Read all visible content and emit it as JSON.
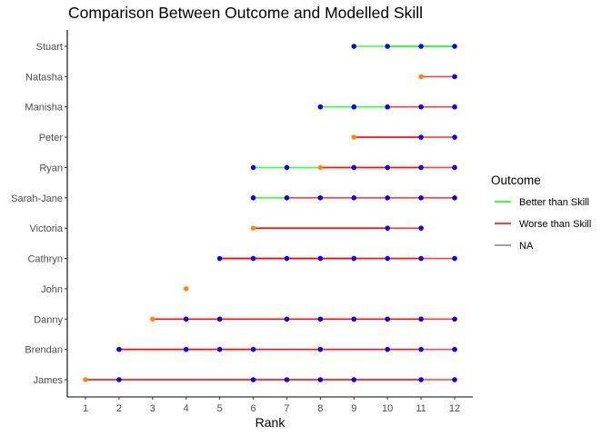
{
  "chart_data": {
    "type": "line",
    "title": "Comparison Between Outcome and Modelled Skill",
    "xlabel": "Rank",
    "ylabel": "",
    "xlim": [
      1,
      12
    ],
    "x_ticks": [
      "1",
      "2",
      "3",
      "4",
      "5",
      "6",
      "7",
      "8",
      "9",
      "10",
      "11",
      "12"
    ],
    "grid": false,
    "legend": {
      "title": "Outcome",
      "placement": "right",
      "entries": [
        {
          "label": "Better than Skill",
          "color": "#00ff00"
        },
        {
          "label": "Worse than Skill",
          "color": "#ff0000"
        },
        {
          "label": "NA",
          "color": "#808080"
        }
      ]
    },
    "point_colors": {
      "outcome": "#ff8c00",
      "skill": "#0000ff"
    },
    "categories": [
      "James",
      "Brendan",
      "Danny",
      "John",
      "Cathryn",
      "Victoria",
      "Sarah-Jane",
      "Ryan",
      "Peter",
      "Manisha",
      "Natasha",
      "Stuart"
    ],
    "players": [
      {
        "name": "Stuart",
        "outcome_rank": null,
        "skill_ranks": [
          9,
          10,
          11,
          12
        ],
        "segments": [
          {
            "from": 9,
            "to": 12,
            "outcome": "Better than Skill"
          },
          {
            "from": 10,
            "to": 12,
            "outcome": "Better than Skill"
          }
        ]
      },
      {
        "name": "Natasha",
        "outcome_rank": 11,
        "skill_ranks": [
          12
        ],
        "segments": [
          {
            "from": 11,
            "to": 12,
            "outcome": "Worse than Skill"
          }
        ]
      },
      {
        "name": "Manisha",
        "outcome_rank": null,
        "skill_ranks": [
          8,
          9,
          10,
          11,
          12
        ],
        "segments": [
          {
            "from": 8,
            "to": 10,
            "outcome": "Better than Skill"
          },
          {
            "from": 10,
            "to": 12,
            "outcome": "Worse than Skill"
          }
        ]
      },
      {
        "name": "Peter",
        "outcome_rank": 9,
        "skill_ranks": [
          11,
          12
        ],
        "segments": [
          {
            "from": 9,
            "to": 12,
            "outcome": "Worse than Skill"
          },
          {
            "from": 9,
            "to": 11,
            "outcome": "Worse than Skill"
          }
        ]
      },
      {
        "name": "Ryan",
        "outcome_rank": 8,
        "skill_ranks": [
          6,
          7,
          9,
          10,
          11,
          12
        ],
        "segments": [
          {
            "from": 6,
            "to": 8,
            "outcome": "Better than Skill"
          },
          {
            "from": 8,
            "to": 12,
            "outcome": "Worse than Skill"
          },
          {
            "from": 8,
            "to": 11,
            "outcome": "Worse than Skill"
          }
        ]
      },
      {
        "name": "Sarah-Jane",
        "outcome_rank": null,
        "skill_ranks": [
          6,
          7,
          8,
          9,
          10,
          11,
          12
        ],
        "segments": [
          {
            "from": 6,
            "to": 7,
            "outcome": "Better than Skill"
          },
          {
            "from": 7,
            "to": 12,
            "outcome": "Worse than Skill"
          }
        ]
      },
      {
        "name": "Victoria",
        "outcome_rank": 6,
        "skill_ranks": [
          10,
          11
        ],
        "segments": [
          {
            "from": 6,
            "to": 11,
            "outcome": "Worse than Skill"
          },
          {
            "from": 6,
            "to": 10,
            "outcome": "Worse than Skill"
          }
        ]
      },
      {
        "name": "Cathryn",
        "outcome_rank": null,
        "skill_ranks": [
          5,
          6,
          7,
          8,
          9,
          10,
          11,
          12
        ],
        "segments": [
          {
            "from": 5,
            "to": 12,
            "outcome": "Worse than Skill"
          },
          {
            "from": 5,
            "to": 11,
            "outcome": "Worse than Skill"
          },
          {
            "from": 5,
            "to": 9,
            "outcome": "Worse than Skill"
          }
        ]
      },
      {
        "name": "John",
        "outcome_rank": 4,
        "skill_ranks": [],
        "segments": []
      },
      {
        "name": "Danny",
        "outcome_rank": 3,
        "skill_ranks": [
          4,
          5,
          7,
          8,
          9,
          10,
          11,
          12
        ],
        "segments": [
          {
            "from": 3,
            "to": 12,
            "outcome": "Worse than Skill"
          },
          {
            "from": 3,
            "to": 11,
            "outcome": "Worse than Skill"
          }
        ]
      },
      {
        "name": "Brendan",
        "outcome_rank": null,
        "skill_ranks": [
          2,
          4,
          5,
          6,
          8,
          10,
          11,
          12
        ],
        "segments": [
          {
            "from": 2,
            "to": 12,
            "outcome": "Worse than Skill"
          },
          {
            "from": 2,
            "to": 11,
            "outcome": "Worse than Skill"
          },
          {
            "from": 2,
            "to": 6,
            "outcome": "Worse than Skill"
          }
        ]
      },
      {
        "name": "James",
        "outcome_rank": 1,
        "skill_ranks": [
          2,
          6,
          7,
          8,
          9,
          11,
          12
        ],
        "segments": [
          {
            "from": 1,
            "to": 12,
            "outcome": "Worse than Skill"
          },
          {
            "from": 1,
            "to": 11,
            "outcome": "Worse than Skill"
          }
        ]
      }
    ]
  }
}
